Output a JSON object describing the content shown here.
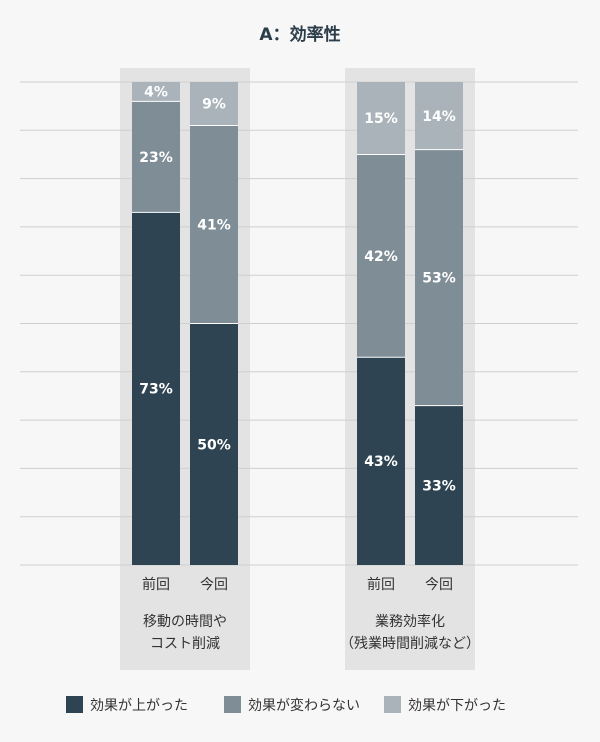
{
  "chart_data": {
    "type": "bar",
    "stacked": true,
    "title": "A：効率性",
    "colors": {
      "effective_up": "#2e4452",
      "no_change": "#7e8d96",
      "effective_down": "#a9b3b9",
      "group_bg": "#e3e3e3",
      "grid": "#cfcfcf"
    },
    "ylim": [
      0,
      100
    ],
    "groups": [
      {
        "label_lines": [
          "移動の時間や",
          "コスト削減"
        ],
        "bars": [
          {
            "label": "前回",
            "values": [
              73,
              23,
              4
            ]
          },
          {
            "label": "今回",
            "values": [
              50,
              41,
              9
            ]
          }
        ]
      },
      {
        "label_lines": [
          "業務効率化",
          "（残業時間削減など）"
        ],
        "bars": [
          {
            "label": "前回",
            "values": [
              43,
              42,
              15
            ]
          },
          {
            "label": "今回",
            "values": [
              33,
              53,
              14
            ]
          }
        ]
      }
    ],
    "series": [
      {
        "name": "効果が上がった",
        "color": "#2e4452"
      },
      {
        "name": "効果が変わらない",
        "color": "#7e8d96"
      },
      {
        "name": "効果が下がった",
        "color": "#a9b3b9"
      }
    ],
    "value_suffix": "%"
  }
}
